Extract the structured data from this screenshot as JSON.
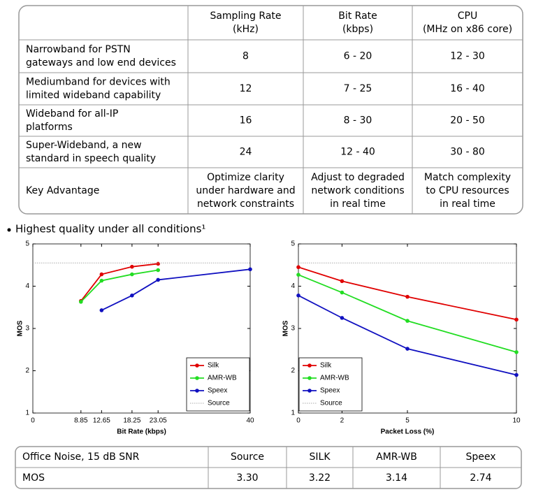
{
  "table": {
    "header": [
      [],
      [
        "Sampling Rate",
        "(kHz)"
      ],
      [
        "Bit Rate",
        "(kbps)"
      ],
      [
        "CPU",
        "(MHz on x86 core)"
      ]
    ],
    "rows": [
      [
        [
          "Narrowband for PSTN",
          "gateways and low end devices"
        ],
        [
          "8"
        ],
        [
          "6 - 20"
        ],
        [
          "12 - 30"
        ]
      ],
      [
        [
          "Mediumband for devices with",
          "limited wideband capability"
        ],
        [
          "12"
        ],
        [
          "7 - 25"
        ],
        [
          "16 - 40"
        ]
      ],
      [
        [
          "Wideband for all-IP",
          "platforms"
        ],
        [
          "16"
        ],
        [
          "8 - 30"
        ],
        [
          "20 - 50"
        ]
      ],
      [
        [
          "Super-Wideband, a new",
          "standard in speech quality"
        ],
        [
          "24"
        ],
        [
          "12 - 40"
        ],
        [
          "30 - 80"
        ]
      ],
      [
        [
          "Key Advantage"
        ],
        [
          "Optimize clarity",
          "under hardware and",
          "network constraints"
        ],
        [
          "Adjust to degraded",
          "network conditions",
          "in real time"
        ],
        [
          "Match complexity",
          "to CPU resources",
          "in real time"
        ]
      ]
    ]
  },
  "bullet": "Highest quality under all conditions¹",
  "chart_data": [
    {
      "type": "line",
      "x_label": "Bit Rate (kbps)",
      "y_label": "MOS",
      "xlim": [
        0,
        40
      ],
      "xticks": [
        0,
        8.85,
        12.65,
        18.25,
        23.05,
        40
      ],
      "ylim": [
        1,
        5
      ],
      "yticks": [
        1,
        2,
        3,
        4,
        5
      ],
      "legend": "lower right",
      "series": [
        {
          "name": "Silk",
          "color": "#e00000",
          "marker": "o",
          "x": [
            8.85,
            12.65,
            18.25,
            23.05
          ],
          "values": [
            3.65,
            4.28,
            4.46,
            4.53
          ]
        },
        {
          "name": "AMR-WB",
          "color": "#22dd22",
          "marker": "o",
          "x": [
            8.85,
            12.65,
            18.25,
            23.05
          ],
          "values": [
            3.63,
            4.13,
            4.28,
            4.38
          ]
        },
        {
          "name": "Speex",
          "color": "#1010c0",
          "marker": "o",
          "x": [
            12.65,
            18.25,
            23.05,
            40
          ],
          "values": [
            3.43,
            3.78,
            4.15,
            4.4
          ]
        },
        {
          "name": "Source",
          "color": "#aaaaaa",
          "linestyle": "dotted",
          "x": [
            0,
            40
          ],
          "values": [
            4.55,
            4.55
          ]
        }
      ]
    },
    {
      "type": "line",
      "x_label": "Packet Loss (%)",
      "y_label": "MOS",
      "xlim": [
        0,
        10
      ],
      "xticks": [
        0,
        2,
        5,
        10
      ],
      "ylim": [
        1,
        5
      ],
      "yticks": [
        1,
        2,
        3,
        4,
        5
      ],
      "legend": "lower left",
      "series": [
        {
          "name": "Silk",
          "color": "#e00000",
          "marker": "o",
          "x": [
            0,
            2,
            5,
            10
          ],
          "values": [
            4.45,
            4.12,
            3.75,
            3.21
          ]
        },
        {
          "name": "AMR-WB",
          "color": "#22dd22",
          "marker": "o",
          "x": [
            0,
            2,
            5,
            10
          ],
          "values": [
            4.27,
            3.85,
            3.18,
            2.44
          ]
        },
        {
          "name": "Speex",
          "color": "#1010c0",
          "marker": "o",
          "x": [
            0,
            2,
            5,
            10
          ],
          "values": [
            3.78,
            3.25,
            2.52,
            1.9
          ]
        },
        {
          "name": "Source",
          "color": "#aaaaaa",
          "linestyle": "dotted",
          "x": [
            0,
            10
          ],
          "values": [
            4.55,
            4.55
          ]
        }
      ]
    }
  ],
  "noise_table": {
    "rows": [
      [
        [
          "Office Noise, 15 dB SNR"
        ],
        [
          "Source"
        ],
        [
          "SILK"
        ],
        [
          "AMR-WB"
        ],
        [
          "Speex"
        ]
      ],
      [
        [
          "MOS"
        ],
        [
          "3.30"
        ],
        [
          "3.22"
        ],
        [
          "3.14"
        ],
        [
          "2.74"
        ]
      ]
    ]
  }
}
